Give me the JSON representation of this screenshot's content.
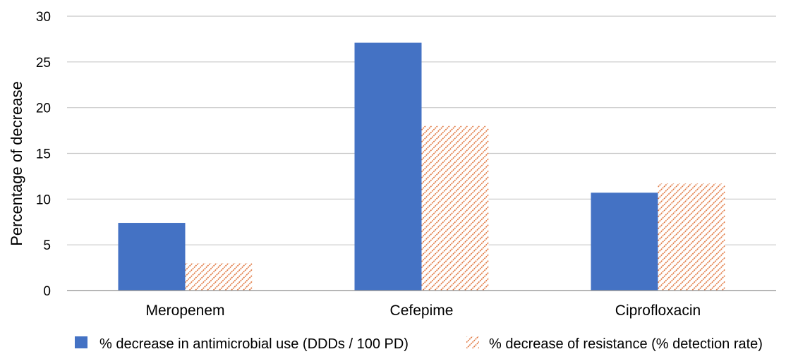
{
  "chart_data": {
    "type": "bar",
    "title": "",
    "xlabel": "",
    "ylabel": "Percentage of decrease",
    "ylim": [
      0,
      30
    ],
    "yticks": [
      0,
      5,
      10,
      15,
      20,
      25,
      30
    ],
    "grid": true,
    "legend_position": "bottom",
    "categories": [
      "Meropenem",
      "Cefepime",
      "Ciprofloxacin"
    ],
    "series": [
      {
        "name": "% decrease in antimicrobial use (DDDs / 100 PD)",
        "values": [
          7.4,
          27.1,
          10.7
        ],
        "color": "#4472c4",
        "fill": "solid"
      },
      {
        "name": "% decrease of resistance (% detection rate)",
        "values": [
          3.0,
          18.0,
          11.7
        ],
        "color": "#e0733a",
        "fill": "diagonal-hatch"
      }
    ]
  }
}
